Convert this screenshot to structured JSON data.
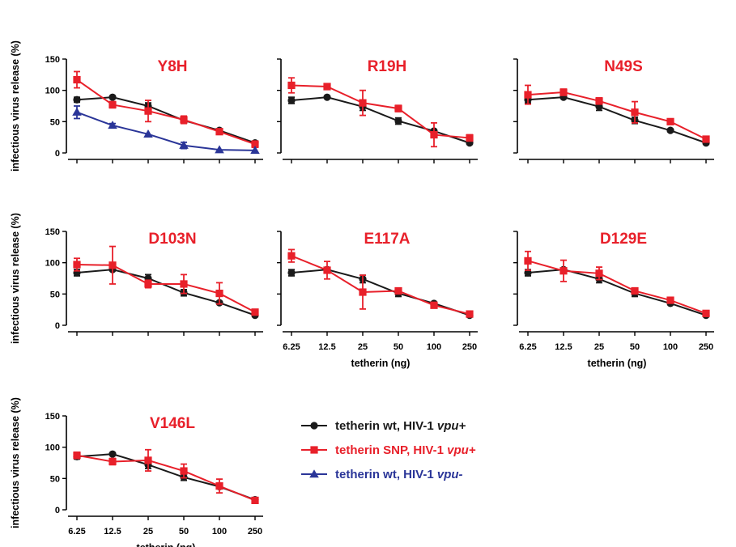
{
  "colors": {
    "wt_vpu_plus": "#1a1a1a",
    "snp_vpu_plus": "#e8202a",
    "wt_vpu_minus": "#2a3598"
  },
  "legend": [
    {
      "key": "wt_vpu_plus",
      "prefix": "tetherin wt, HIV-1 ",
      "italic": "vpu+",
      "marker": "circle"
    },
    {
      "key": "snp_vpu_plus",
      "prefix": "tetherin SNP, HIV-1 ",
      "italic": "vpu+",
      "marker": "square"
    },
    {
      "key": "wt_vpu_minus",
      "prefix": "tetherin wt, HIV-1 ",
      "italic": "vpu-",
      "marker": "triangle"
    }
  ],
  "chart_data": [
    {
      "type": "line",
      "title": "Y8H",
      "categories": [
        "6.25",
        "12.5",
        "25",
        "50",
        "100",
        "250"
      ],
      "ylabel": "infectious virus release (%)",
      "xlabel": "",
      "ylim": [
        0,
        150
      ],
      "yticks": [
        0,
        50,
        100,
        150
      ],
      "show_ylabel": true,
      "show_xticklabels": false,
      "series": [
        {
          "name": "tetherin wt, HIV-1 vpu+",
          "key": "wt_vpu_plus",
          "marker": "circle",
          "values": [
            85,
            89,
            75,
            52,
            36,
            16
          ],
          "errors": [
            4,
            0,
            5,
            4,
            2,
            2
          ]
        },
        {
          "name": "tetherin SNP, HIV-1 vpu+",
          "key": "snp_vpu_plus",
          "marker": "square",
          "values": [
            117,
            77,
            67,
            53,
            34,
            14
          ],
          "errors": [
            13,
            5,
            17,
            6,
            3,
            5
          ]
        },
        {
          "name": "tetherin wt, HIV-1 vpu-",
          "key": "wt_vpu_minus",
          "marker": "triangle",
          "values": [
            65,
            44,
            30,
            12,
            5,
            4
          ],
          "errors": [
            10,
            3,
            0,
            5,
            0,
            0
          ]
        }
      ]
    },
    {
      "type": "line",
      "title": "R19H",
      "categories": [
        "6.25",
        "12.5",
        "25",
        "50",
        "100",
        "250"
      ],
      "ylabel": "",
      "xlabel": "",
      "ylim": [
        0,
        150
      ],
      "yticks": [
        0,
        50,
        100,
        150
      ],
      "show_ylabel": false,
      "show_xticklabels": false,
      "series": [
        {
          "name": "tetherin wt, HIV-1 vpu+",
          "key": "wt_vpu_plus",
          "marker": "circle",
          "values": [
            84,
            89,
            74,
            51,
            35,
            16
          ],
          "errors": [
            5,
            0,
            6,
            5,
            2,
            2
          ]
        },
        {
          "name": "tetherin SNP, HIV-1 vpu+",
          "key": "snp_vpu_plus",
          "marker": "square",
          "values": [
            108,
            106,
            80,
            71,
            29,
            24
          ],
          "errors": [
            12,
            0,
            20,
            5,
            19,
            5
          ]
        }
      ]
    },
    {
      "type": "line",
      "title": "N49S",
      "categories": [
        "6.25",
        "12.5",
        "25",
        "50",
        "100",
        "250"
      ],
      "ylabel": "",
      "xlabel": "",
      "ylim": [
        0,
        150
      ],
      "yticks": [
        0,
        50,
        100,
        150
      ],
      "show_ylabel": false,
      "show_xticklabels": false,
      "series": [
        {
          "name": "tetherin wt, HIV-1 vpu+",
          "key": "wt_vpu_plus",
          "marker": "circle",
          "values": [
            85,
            89,
            74,
            52,
            36,
            16
          ],
          "errors": [
            5,
            0,
            6,
            5,
            2,
            2
          ]
        },
        {
          "name": "tetherin SNP, HIV-1 vpu+",
          "key": "snp_vpu_plus",
          "marker": "square",
          "values": [
            93,
            97,
            83,
            65,
            50,
            22
          ],
          "errors": [
            15,
            5,
            5,
            17,
            0,
            2
          ]
        }
      ]
    },
    {
      "type": "line",
      "title": "D103N",
      "categories": [
        "6.25",
        "12.5",
        "25",
        "50",
        "100",
        "250"
      ],
      "ylabel": "infectious virus release (%)",
      "xlabel": "",
      "ylim": [
        0,
        150
      ],
      "yticks": [
        0,
        50,
        100,
        150
      ],
      "show_ylabel": true,
      "show_xticklabels": false,
      "series": [
        {
          "name": "tetherin wt, HIV-1 vpu+",
          "key": "wt_vpu_plus",
          "marker": "circle",
          "values": [
            84,
            89,
            75,
            52,
            36,
            16
          ],
          "errors": [
            5,
            0,
            6,
            5,
            2,
            2
          ]
        },
        {
          "name": "tetherin SNP, HIV-1 vpu+",
          "key": "snp_vpu_plus",
          "marker": "square",
          "values": [
            97,
            96,
            66,
            66,
            51,
            21
          ],
          "errors": [
            10,
            30,
            6,
            15,
            17,
            2
          ]
        }
      ]
    },
    {
      "type": "line",
      "title": "E117A",
      "categories": [
        "6.25",
        "12.5",
        "25",
        "50",
        "100",
        "250"
      ],
      "ylabel": "",
      "xlabel": "tetherin (ng)",
      "ylim": [
        0,
        150
      ],
      "yticks": [
        0,
        50,
        100,
        150
      ],
      "show_ylabel": false,
      "show_xticklabels": true,
      "series": [
        {
          "name": "tetherin wt, HIV-1 vpu+",
          "key": "wt_vpu_plus",
          "marker": "circle",
          "values": [
            84,
            89,
            74,
            51,
            35,
            16
          ],
          "errors": [
            5,
            0,
            6,
            5,
            2,
            2
          ]
        },
        {
          "name": "tetherin SNP, HIV-1 vpu+",
          "key": "snp_vpu_plus",
          "marker": "square",
          "values": [
            111,
            88,
            53,
            55,
            32,
            18
          ],
          "errors": [
            10,
            14,
            27,
            3,
            3,
            2
          ]
        }
      ]
    },
    {
      "type": "line",
      "title": "D129E",
      "categories": [
        "6.25",
        "12.5",
        "25",
        "50",
        "100",
        "250"
      ],
      "ylabel": "",
      "xlabel": "tetherin (ng)",
      "ylim": [
        0,
        150
      ],
      "yticks": [
        0,
        50,
        100,
        150
      ],
      "show_ylabel": false,
      "show_xticklabels": true,
      "series": [
        {
          "name": "tetherin wt, HIV-1 vpu+",
          "key": "wt_vpu_plus",
          "marker": "circle",
          "values": [
            84,
            89,
            74,
            51,
            35,
            16
          ],
          "errors": [
            5,
            0,
            6,
            5,
            2,
            2
          ]
        },
        {
          "name": "tetherin SNP, HIV-1 vpu+",
          "key": "snp_vpu_plus",
          "marker": "square",
          "values": [
            103,
            87,
            83,
            55,
            40,
            19
          ],
          "errors": [
            15,
            17,
            10,
            2,
            2,
            2
          ]
        }
      ]
    },
    {
      "type": "line",
      "title": "V146L",
      "categories": [
        "6.25",
        "12.5",
        "25",
        "50",
        "100",
        "250"
      ],
      "ylabel": "infectious virus release (%)",
      "xlabel": "tetherin (ng)",
      "ylim": [
        0,
        150
      ],
      "yticks": [
        0,
        50,
        100,
        150
      ],
      "show_ylabel": true,
      "show_xticklabels": true,
      "series": [
        {
          "name": "tetherin wt, HIV-1 vpu+",
          "key": "wt_vpu_plus",
          "marker": "circle",
          "values": [
            85,
            89,
            72,
            52,
            37,
            16
          ],
          "errors": [
            4,
            0,
            6,
            5,
            2,
            2
          ]
        },
        {
          "name": "tetherin SNP, HIV-1 vpu+",
          "key": "snp_vpu_plus",
          "marker": "square",
          "values": [
            87,
            77,
            79,
            62,
            38,
            15
          ],
          "errors": [
            5,
            5,
            17,
            11,
            11,
            2
          ]
        }
      ]
    }
  ]
}
